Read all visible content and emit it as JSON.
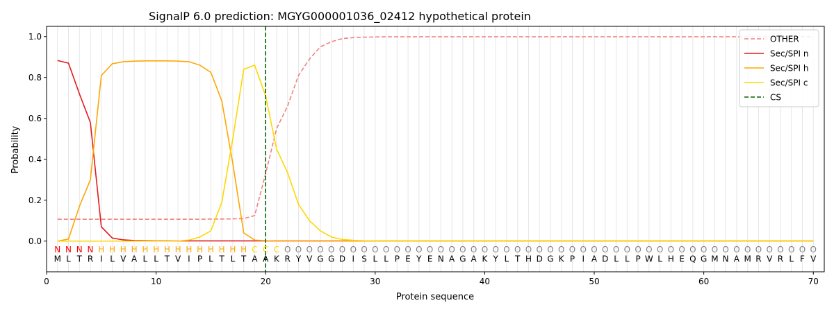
{
  "chart_data": {
    "type": "line",
    "title": "SignalP 6.0 prediction: MGYG000001036_02412 hypothetical protein",
    "xlabel": "Protein sequence",
    "ylabel": "Probability",
    "xlim": [
      0,
      71
    ],
    "ylim": [
      -0.15,
      1.05
    ],
    "x_ticks": [
      0,
      10,
      20,
      30,
      40,
      50,
      60,
      70
    ],
    "y_ticks": [
      0.0,
      0.2,
      0.4,
      0.6,
      0.8,
      1.0
    ],
    "x_tick_labels": [
      "0",
      "10",
      "20",
      "30",
      "40",
      "50",
      "60",
      "70"
    ],
    "y_tick_labels": [
      "0.0",
      "0.2",
      "0.4",
      "0.6",
      "0.8",
      "1.0"
    ],
    "grid": "vertical lines at each residue",
    "legend_position": "top-right",
    "sequence": [
      "M",
      "L",
      "T",
      "R",
      "I",
      "L",
      "V",
      "A",
      "L",
      "L",
      "T",
      "V",
      "I",
      "P",
      "L",
      "T",
      "L",
      "T",
      "A",
      "A",
      "K",
      "R",
      "Y",
      "V",
      "G",
      "G",
      "D",
      "I",
      "S",
      "L",
      "L",
      "P",
      "E",
      "Y",
      "E",
      "N",
      "A",
      "G",
      "A",
      "K",
      "Y",
      "L",
      "T",
      "H",
      "D",
      "G",
      "K",
      "P",
      "I",
      "A",
      "D",
      "L",
      "L",
      "P",
      "W",
      "L",
      "H",
      "E",
      "Q",
      "G",
      "M",
      "N",
      "A",
      "M",
      "R",
      "V",
      "R",
      "L",
      "F",
      "V"
    ],
    "region_labels": [
      "N",
      "N",
      "N",
      "N",
      "H",
      "H",
      "H",
      "H",
      "H",
      "H",
      "H",
      "H",
      "H",
      "H",
      "H",
      "H",
      "H",
      "H",
      "C",
      "C",
      "C",
      "O",
      "O",
      "O",
      "O",
      "O",
      "O",
      "O",
      "O",
      "O",
      "O",
      "O",
      "O",
      "O",
      "O",
      "O",
      "O",
      "O",
      "O",
      "O",
      "O",
      "O",
      "O",
      "O",
      "O",
      "O",
      "O",
      "O",
      "O",
      "O",
      "O",
      "O",
      "O",
      "O",
      "O",
      "O",
      "O",
      "O",
      "O",
      "O",
      "O",
      "O",
      "O",
      "O",
      "O",
      "O",
      "O",
      "O",
      "O",
      "O"
    ],
    "region_colors": {
      "N": "#ff0000",
      "H": "#ffa500",
      "C": "#ffd700",
      "O": "#808080"
    },
    "cleavage_site": 20,
    "series": [
      {
        "name": "OTHER",
        "color": "#f08080",
        "style": "dashed",
        "values": [
          0.107,
          0.107,
          0.107,
          0.107,
          0.107,
          0.107,
          0.107,
          0.107,
          0.107,
          0.107,
          0.107,
          0.107,
          0.107,
          0.107,
          0.108,
          0.108,
          0.109,
          0.11,
          0.125,
          0.33,
          0.55,
          0.66,
          0.81,
          0.89,
          0.95,
          0.975,
          0.99,
          0.995,
          0.997,
          0.998,
          0.999,
          0.999,
          0.999,
          0.999,
          0.999,
          0.999,
          0.999,
          0.999,
          0.999,
          0.999,
          0.999,
          0.999,
          0.999,
          0.999,
          0.999,
          0.999,
          0.999,
          0.999,
          0.999,
          0.999,
          0.999,
          0.999,
          0.999,
          0.999,
          0.999,
          0.999,
          0.999,
          0.999,
          0.999,
          0.999,
          0.999,
          0.999,
          0.999,
          0.999,
          0.999,
          0.999,
          0.999,
          0.999,
          0.999,
          0.999
        ]
      },
      {
        "name": "Sec/SPI n",
        "color": "#e31a1c",
        "style": "solid",
        "values": [
          0.883,
          0.87,
          0.72,
          0.58,
          0.07,
          0.015,
          0.006,
          0.003,
          0.002,
          0.001,
          0.001,
          0.001,
          0.001,
          0.001,
          0.001,
          0.001,
          0.001,
          0.001,
          0.001,
          0.001,
          0.001,
          0.001,
          0.001,
          0.001,
          0.001,
          0.001,
          0.001,
          0.001,
          0.001,
          0.001,
          0.001,
          0.001,
          0.001,
          0.001,
          0.001,
          0.001,
          0.001,
          0.001,
          0.001,
          0.001,
          0.001,
          0.001,
          0.001,
          0.001,
          0.001,
          0.001,
          0.001,
          0.001,
          0.001,
          0.001,
          0.001,
          0.001,
          0.001,
          0.001,
          0.001,
          0.001,
          0.001,
          0.001,
          0.001,
          0.001,
          0.001,
          0.001,
          0.001,
          0.001,
          0.001,
          0.001,
          0.001,
          0.001,
          0.001,
          0.001
        ]
      },
      {
        "name": "Sec/SPI h",
        "color": "#ffa500",
        "style": "solid",
        "values": [
          0.0,
          0.01,
          0.17,
          0.3,
          0.81,
          0.867,
          0.877,
          0.88,
          0.881,
          0.881,
          0.881,
          0.88,
          0.877,
          0.86,
          0.825,
          0.685,
          0.38,
          0.04,
          0.005,
          0.002,
          0.001,
          0.001,
          0.001,
          0.001,
          0.001,
          0.001,
          0.001,
          0.001,
          0.001,
          0.001,
          0.001,
          0.001,
          0.001,
          0.001,
          0.001,
          0.001,
          0.001,
          0.001,
          0.001,
          0.001,
          0.001,
          0.001,
          0.001,
          0.001,
          0.001,
          0.001,
          0.001,
          0.001,
          0.001,
          0.001,
          0.001,
          0.001,
          0.001,
          0.001,
          0.001,
          0.001,
          0.001,
          0.001,
          0.001,
          0.001,
          0.001,
          0.001,
          0.001,
          0.001,
          0.001,
          0.001,
          0.001,
          0.001,
          0.001,
          0.001
        ]
      },
      {
        "name": "Sec/SPI c",
        "color": "#ffd700",
        "style": "solid",
        "values": [
          0.0,
          0.0,
          0.0,
          0.0,
          0.0,
          0.0,
          0.0,
          0.0,
          0.0,
          0.0,
          0.0,
          0.001,
          0.005,
          0.02,
          0.05,
          0.19,
          0.5,
          0.84,
          0.86,
          0.71,
          0.45,
          0.335,
          0.18,
          0.1,
          0.05,
          0.02,
          0.008,
          0.004,
          0.002,
          0.001,
          0.001,
          0.001,
          0.001,
          0.001,
          0.001,
          0.001,
          0.001,
          0.001,
          0.001,
          0.001,
          0.001,
          0.001,
          0.001,
          0.001,
          0.001,
          0.001,
          0.001,
          0.001,
          0.001,
          0.001,
          0.001,
          0.001,
          0.001,
          0.001,
          0.001,
          0.001,
          0.001,
          0.001,
          0.001,
          0.001,
          0.001,
          0.001,
          0.001,
          0.001,
          0.001,
          0.001,
          0.001,
          0.001,
          0.001,
          0.001
        ]
      },
      {
        "name": "CS",
        "color": "#006400",
        "style": "dashed",
        "values": []
      }
    ]
  }
}
